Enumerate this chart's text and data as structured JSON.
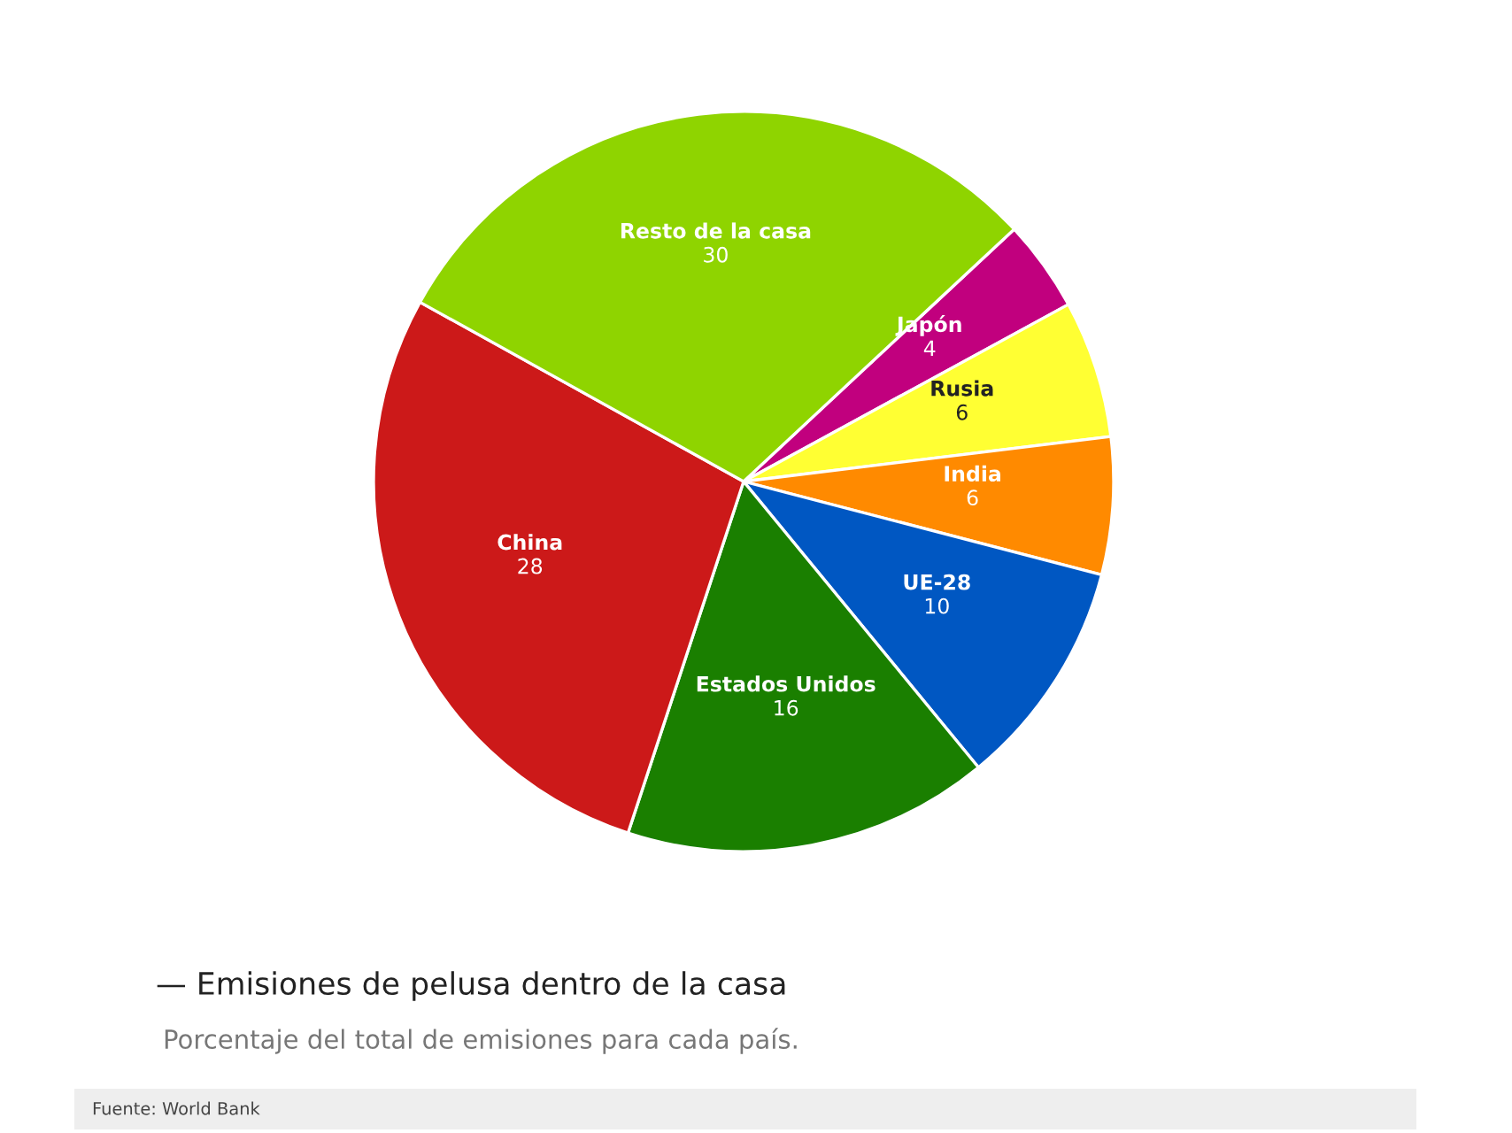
{
  "chart_data": {
    "type": "pie",
    "title": "— Emisiones de pelusa dentro de la casa",
    "subtitle": "Porcentaje del total de emisiones para cada país.",
    "annotations": [
      "Fuente: World Bank"
    ],
    "categories": [
      "Japón",
      "Rusia",
      "India",
      "UE-28",
      "Estados Unidos",
      "China",
      "Resto de la casa"
    ],
    "values": [
      4,
      6,
      6,
      10,
      16,
      28,
      30
    ],
    "colors": [
      "#c1007e",
      "#ffff33",
      "#ff8a00",
      "#0057c2",
      "#1a7f00",
      "#cc1919",
      "#8fd400"
    ],
    "data_labels": true,
    "legend": false
  }
}
